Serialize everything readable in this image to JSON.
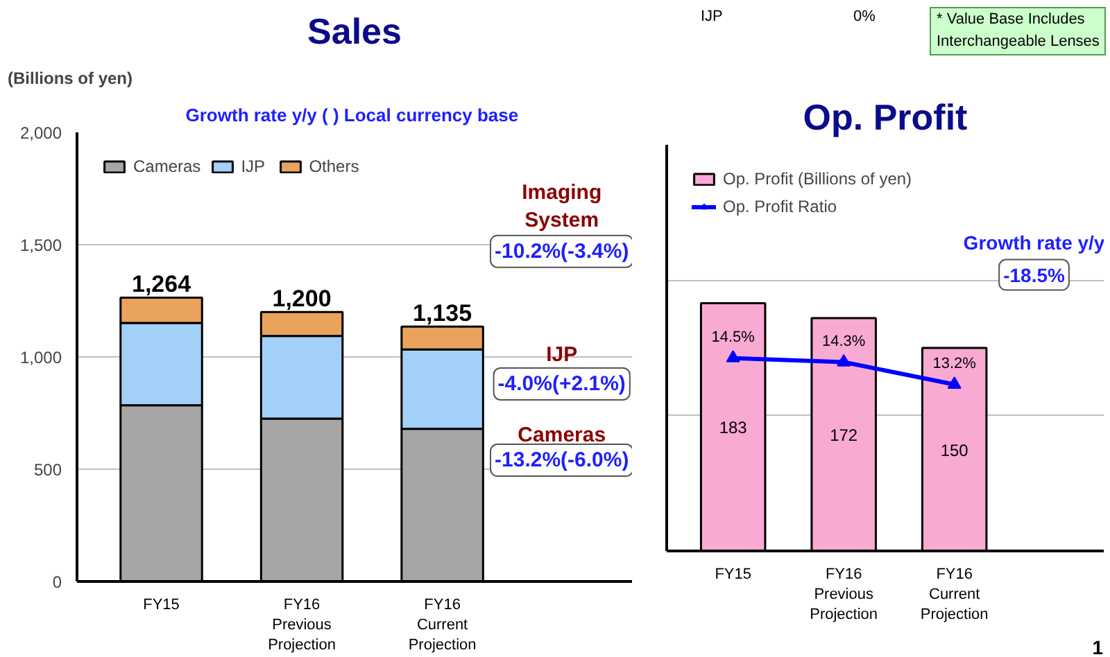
{
  "chart_data": [
    {
      "type": "bar",
      "title": "Sales",
      "subtitle": "Growth rate y/y  ( ) Local currency base",
      "ylabel": "(Billions of yen)",
      "categories": [
        "FY15",
        "FY16\nPrevious\nProjection",
        "FY16\nCurrent\nProjection"
      ],
      "stacked": true,
      "series": [
        {
          "name": "Cameras",
          "color": "#a6a6a6",
          "values": [
            785,
            725,
            680
          ]
        },
        {
          "name": "IJP",
          "color": "#a3d0f8",
          "values": [
            366,
            368,
            353
          ]
        },
        {
          "name": "Others",
          "color": "#e9a35c",
          "values": [
            113,
            107,
            102
          ]
        }
      ],
      "totals": [
        "1,264",
        "1,200",
        "1,135"
      ],
      "ylim": [
        0,
        2000
      ],
      "yticks": [
        0,
        500,
        {
          "value": 1000,
          "label": "1,000"
        },
        {
          "value": 1500,
          "label": "1,500"
        },
        {
          "value": 2000,
          "label": "2,000"
        }
      ],
      "grid": "y",
      "legend": "top left",
      "annotations": [
        "Imaging\nSystem",
        "-10.2%(-3.4%)",
        "IJP",
        "-4.0%(+2.1%)",
        "Cameras",
        "-13.2%(-6.0%)"
      ]
    },
    {
      "type": "bar",
      "title": "Op. Profit",
      "categories": [
        "FY15",
        "FY16\nPrevious\nProjection",
        "FY16\nCurrent\nProjection"
      ],
      "series": [
        {
          "name": "Op. Profit (Billions of yen)",
          "color": "#f9aad2",
          "values": [
            183,
            172,
            150
          ],
          "value_labels": [
            "183",
            "172",
            "150"
          ]
        },
        {
          "name": "Op. Profit Ratio",
          "type": "line",
          "axis": "y2",
          "color": "#0000ff",
          "marker": "triangle",
          "values": [
            14.5,
            14.3,
            13.2
          ],
          "value_labels": [
            "14.5%",
            "14.3%",
            "13.2%"
          ]
        }
      ],
      "ylim": [
        0,
        300
      ],
      "yticks": [
        {
          "value": 0,
          "label": null
        },
        {
          "value": 100,
          "label": null
        },
        {
          "value": 200,
          "label": null
        }
      ],
      "y2lim": [
        5,
        25
      ],
      "tick_labels": "x",
      "grid": "y",
      "legend": "top left",
      "annotations": [
        "IJP",
        "0%",
        "* Value Base Includes\nInterchangeable Lenses",
        "1",
        "Growth rate y/y",
        "-18.5%"
      ]
    }
  ]
}
